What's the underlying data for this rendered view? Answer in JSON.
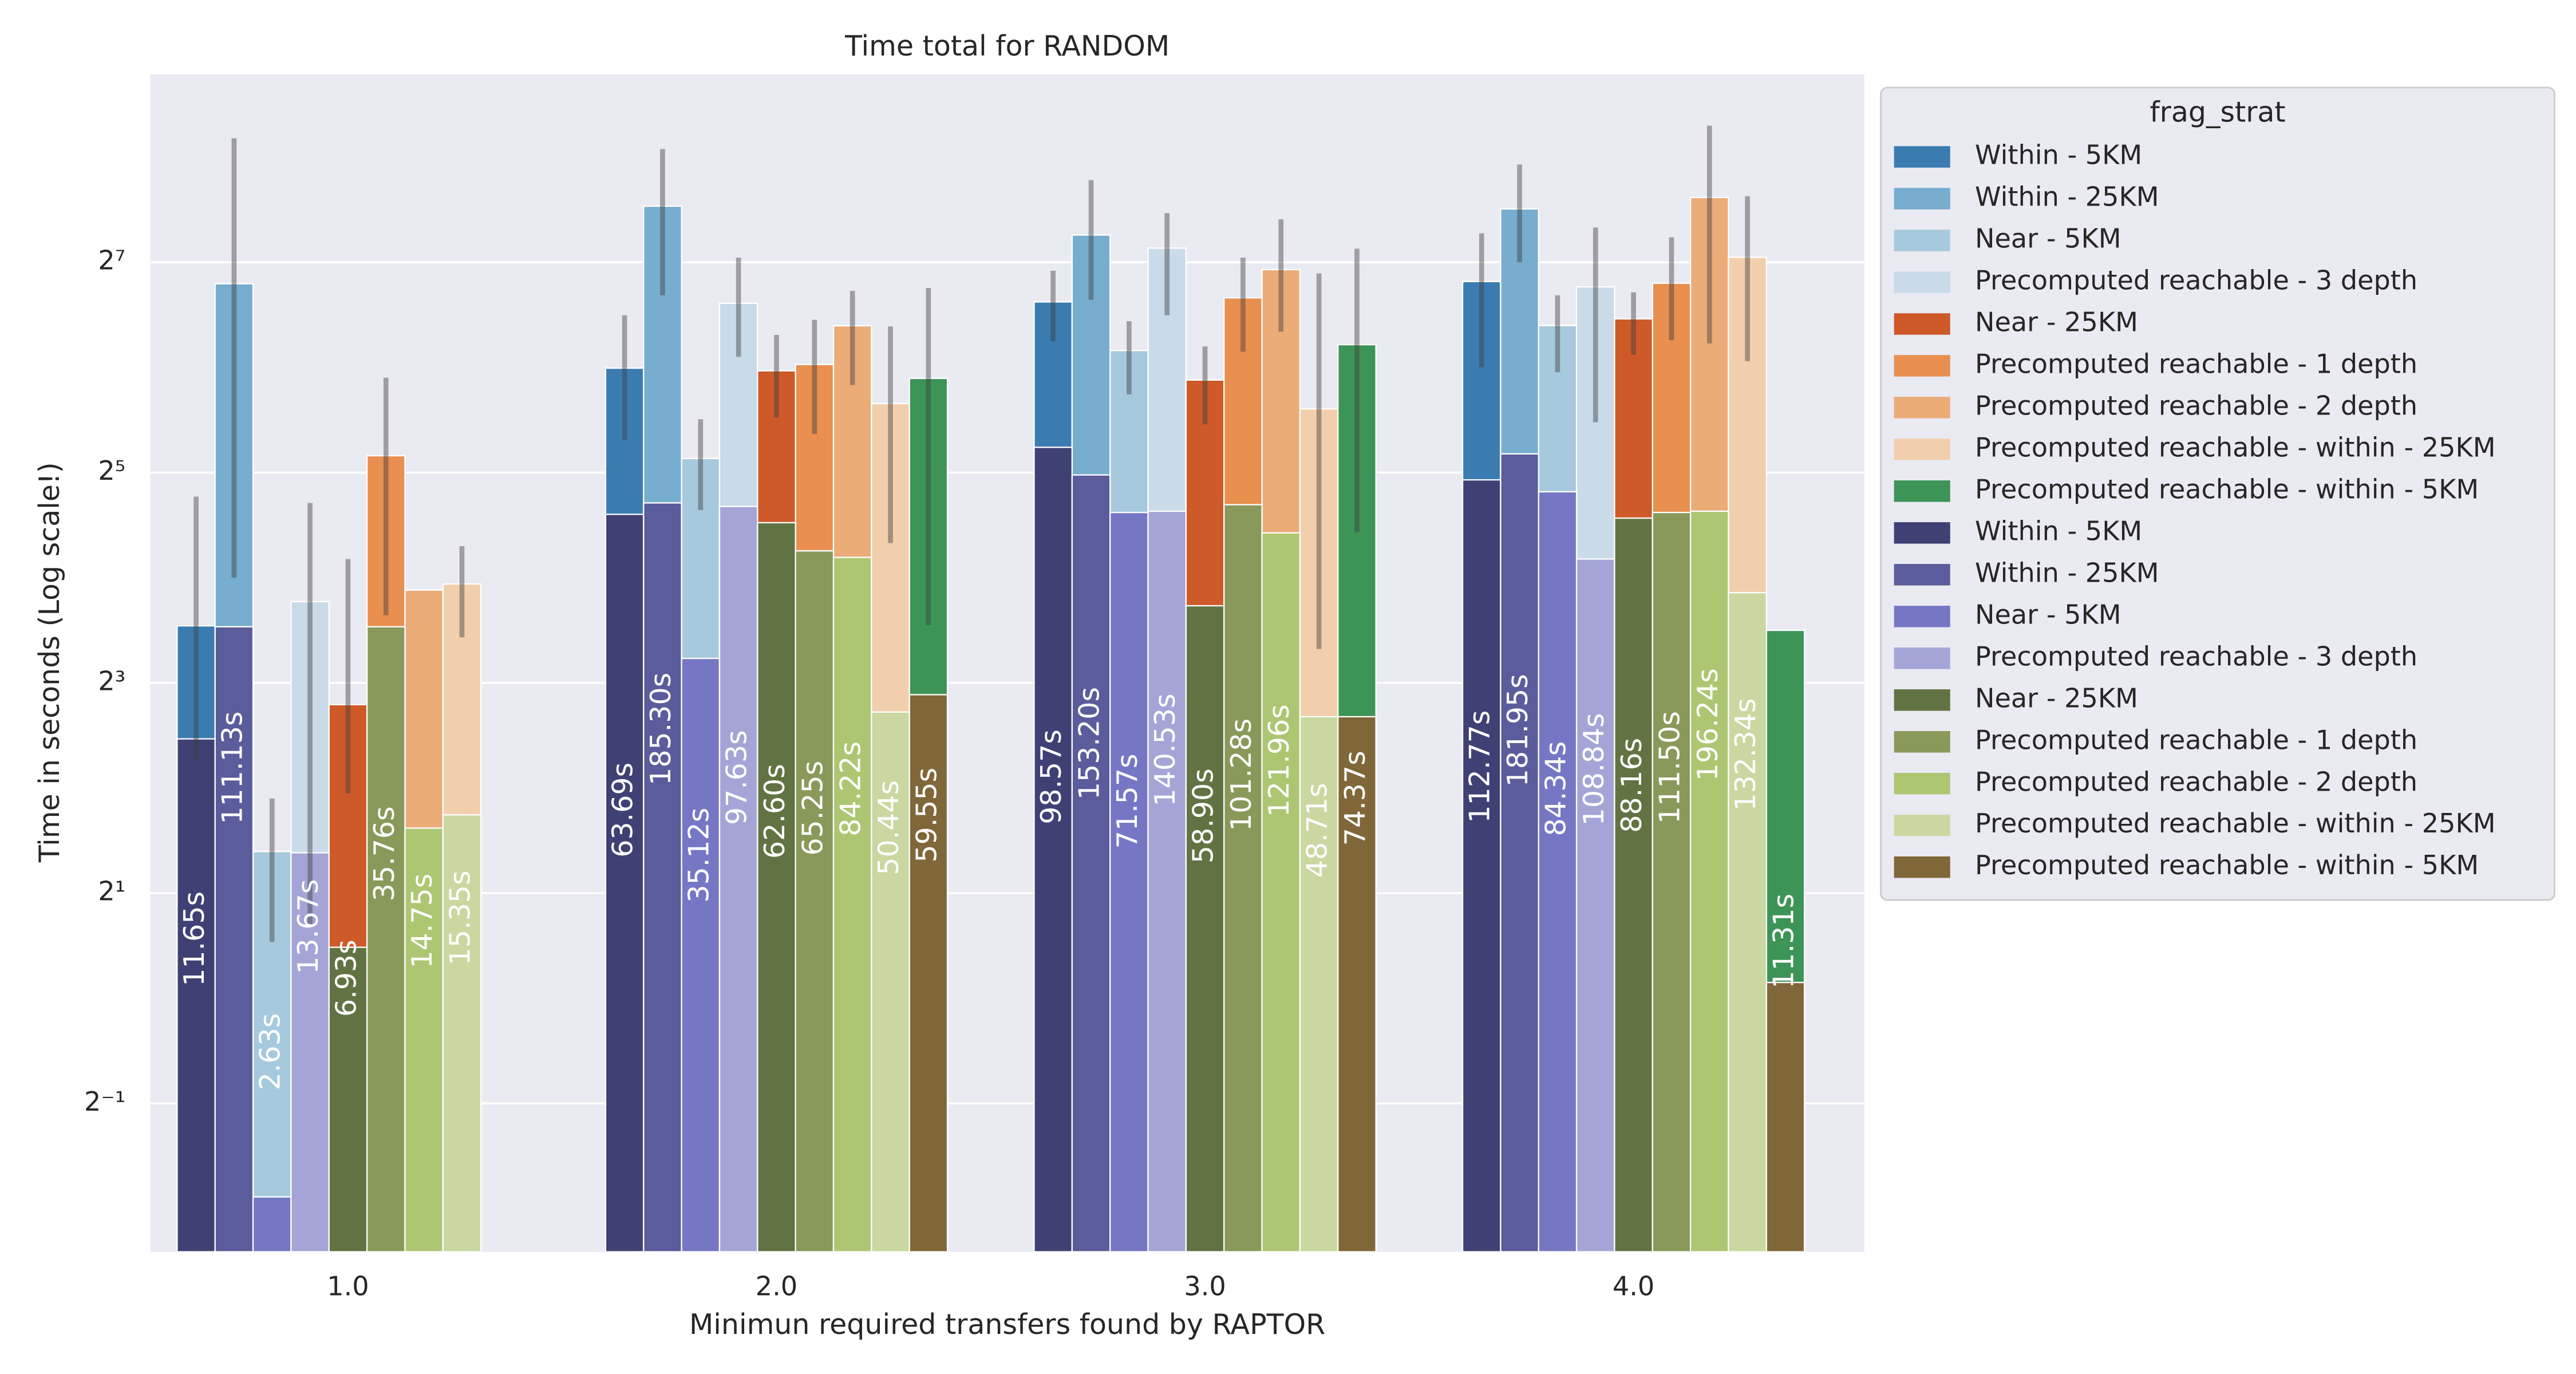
{
  "chart_data": {
    "type": "bar",
    "title": "Time total for RANDOM",
    "x_label": "Minimun required transfers found by RAPTOR",
    "y_label": "Time in seconds (Log scale!)",
    "legend_title": "frag_strat",
    "categories": [
      "1.0",
      "2.0",
      "3.0",
      "4.0"
    ],
    "yscale": "log",
    "ylim": [
      0.188,
      442
    ],
    "yticks": [
      {
        "value": 128,
        "label": "2⁷"
      },
      {
        "value": 32,
        "label": "2⁵"
      },
      {
        "value": 8,
        "label": "2³"
      },
      {
        "value": 2,
        "label": "2¹"
      },
      {
        "value": 0.5,
        "label": "2⁻¹"
      }
    ],
    "grid": true,
    "series": [
      {
        "name": "Within - 5KM",
        "color": "#3b7cb0",
        "values": [
          11.65,
          63.69,
          98.57,
          112.77
        ],
        "value_labels": [
          "11.65s",
          "63.69s",
          "98.57s",
          "112.77s"
        ],
        "errors": [
          [
            4.8,
            27.3
          ],
          [
            39.6,
            90.3
          ],
          [
            76,
            121
          ],
          [
            64,
            155
          ]
        ]
      },
      {
        "name": "Within - 25KM",
        "color": "#77adcf",
        "values": [
          111.13,
          185.3,
          153.2,
          181.95
        ],
        "value_labels": [
          "111.13s",
          "185.30s",
          "153.20s",
          "181.95s"
        ],
        "errors": [
          [
            16,
            290
          ],
          [
            103,
            270
          ],
          [
            100,
            220
          ],
          [
            128,
            244
          ]
        ]
      },
      {
        "name": "Near - 5KM",
        "color": "#a6c9dd",
        "values": [
          2.63,
          35.12,
          71.57,
          84.34
        ],
        "value_labels": [
          "2.63s",
          "35.12s",
          "71.57s",
          "84.34s"
        ],
        "errors": [
          [
            1.45,
            3.73
          ],
          [
            25,
            45.5
          ],
          [
            53.6,
            86.8
          ],
          [
            62,
            103
          ]
        ]
      },
      {
        "name": "Precomputed reachable - 3 depth",
        "color": "#c9dae9",
        "values": [
          13.67,
          97.63,
          140.53,
          108.84
        ],
        "value_labels": [
          "13.67s",
          "97.63s",
          "140.53s",
          "108.84s"
        ],
        "errors": [
          [
            1.61,
            26.2
          ],
          [
            68.6,
            132
          ],
          [
            90.3,
            177
          ],
          [
            44.6,
            161
          ]
        ]
      },
      {
        "name": "Near - 25KM",
        "color": "#cd5a28",
        "values": [
          6.93,
          62.6,
          58.9,
          88.16
        ],
        "value_labels": [
          "6.93s",
          "62.60s",
          "58.90s",
          "88.16s"
        ],
        "errors": [
          [
            3.86,
            18.1
          ],
          [
            46,
            79.3
          ],
          [
            44,
            73.5
          ],
          [
            69.6,
            105
          ]
        ]
      },
      {
        "name": "Precomputed reachable - 1 depth",
        "color": "#e98f50",
        "values": [
          35.76,
          65.25,
          101.28,
          111.5
        ],
        "value_labels": [
          "35.76s",
          "65.25s",
          "101.28s",
          "111.50s"
        ],
        "errors": [
          [
            12.5,
            59.8
          ],
          [
            41.3,
            87.6
          ],
          [
            71,
            132
          ],
          [
            76.6,
            151
          ]
        ]
      },
      {
        "name": "Precomputed reachable - 2 depth",
        "color": "#ebac78",
        "values": [
          14.75,
          84.22,
          121.96,
          196.24
        ],
        "value_labels": [
          "14.75s",
          "84.22s",
          "121.96s",
          "196.24s"
        ],
        "errors": [
          null,
          [
            57,
            106
          ],
          [
            81,
            170
          ],
          [
            75,
            315
          ]
        ]
      },
      {
        "name": "Precomputed reachable - within - 25KM",
        "color": "#f2cfac",
        "values": [
          15.35,
          50.44,
          48.71,
          132.34
        ],
        "value_labels": [
          "15.35s",
          "50.44s",
          "48.71s",
          "132.34s"
        ],
        "errors": [
          [
            10.8,
            19.7
          ],
          [
            20.1,
            83.9
          ],
          [
            10,
            119
          ],
          [
            66.7,
            198
          ]
        ]
      },
      {
        "name": "Precomputed reachable - within - 5KM",
        "color": "#3d9457",
        "values": [
          null,
          59.55,
          74.37,
          11.31
        ],
        "value_labels": [
          null,
          "59.55s",
          "74.37s",
          "11.31s"
        ],
        "errors": [
          null,
          [
            11.7,
            108
          ],
          [
            21.6,
            140
          ],
          null
        ]
      },
      {
        "name": "Within - 5KM",
        "color": "#3f4074",
        "values": [
          5.53,
          24.3,
          37.8,
          30.5
        ]
      },
      {
        "name": "Within - 25KM",
        "color": "#5b5c9b",
        "values": [
          11.58,
          26.2,
          31.5,
          36.2
        ]
      },
      {
        "name": "Near - 5KM",
        "color": "#7677c4",
        "values": [
          0.27,
          9.4,
          24.6,
          28.2
        ]
      },
      {
        "name": "Precomputed reachable - 3 depth",
        "color": "#a4a5d6",
        "values": [
          2.61,
          25.6,
          24.8,
          18.1
        ]
      },
      {
        "name": "Near - 25KM",
        "color": "#627343",
        "values": [
          1.4,
          23.0,
          13.3,
          23.7
        ]
      },
      {
        "name": "Precomputed reachable - 1 depth",
        "color": "#88995a",
        "values": [
          11.58,
          19.1,
          25.9,
          24.6
        ]
      },
      {
        "name": "Precomputed reachable - 2 depth",
        "color": "#adc672",
        "values": [
          3.07,
          18.3,
          21.5,
          24.8
        ]
      },
      {
        "name": "Precomputed reachable - within - 25KM",
        "color": "#cad7a1",
        "values": [
          3.35,
          6.6,
          6.4,
          14.5
        ]
      },
      {
        "name": "Precomputed reachable - within - 5KM",
        "color": "#806739",
        "values": [
          null,
          7.4,
          6.4,
          1.11
        ]
      }
    ]
  }
}
